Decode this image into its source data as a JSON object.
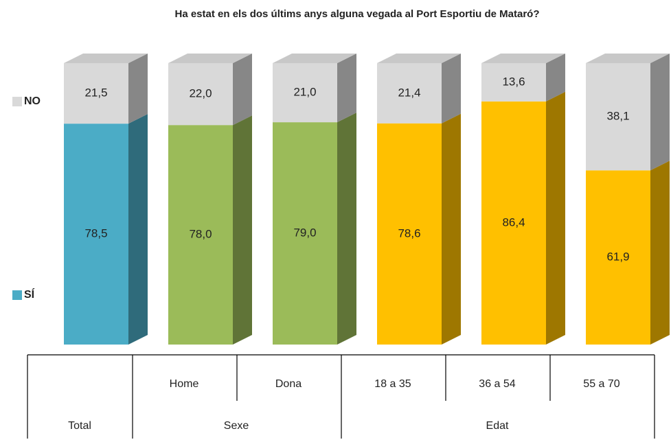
{
  "chart_data": {
    "type": "bar",
    "stacked": true,
    "title": "Ha estat en els dos últims anys alguna vegada al Port Esportiu de Mataró?",
    "categories": [
      null,
      "Home",
      "Dona",
      "18 a 35",
      "36 a 54",
      "55 a 70"
    ],
    "groups": [
      {
        "label": "Total",
        "span": 1
      },
      {
        "label": "Sexe",
        "span": 2
      },
      {
        "label": "Edat",
        "span": 3
      }
    ],
    "ylim": [
      0,
      100
    ],
    "series": [
      {
        "name": "SÍ",
        "color": "#4bacc6",
        "colors": [
          "#4bacc6",
          "#9bbb59",
          "#9bbb59",
          "#ffc000",
          "#ffc000",
          "#ffc000"
        ],
        "values": [
          78.5,
          78.0,
          79.0,
          78.6,
          86.4,
          61.9
        ],
        "value_labels": [
          "78,5",
          "78,0",
          "79,0",
          "78,6",
          "86,4",
          "61,9"
        ]
      },
      {
        "name": "NO",
        "color": "#d9d9d9",
        "values": [
          21.5,
          22.0,
          21.0,
          21.4,
          13.6,
          38.1
        ],
        "value_labels": [
          "21,5",
          "22,0",
          "21,0",
          "21,4",
          "13,6",
          "38,1"
        ]
      }
    ]
  }
}
